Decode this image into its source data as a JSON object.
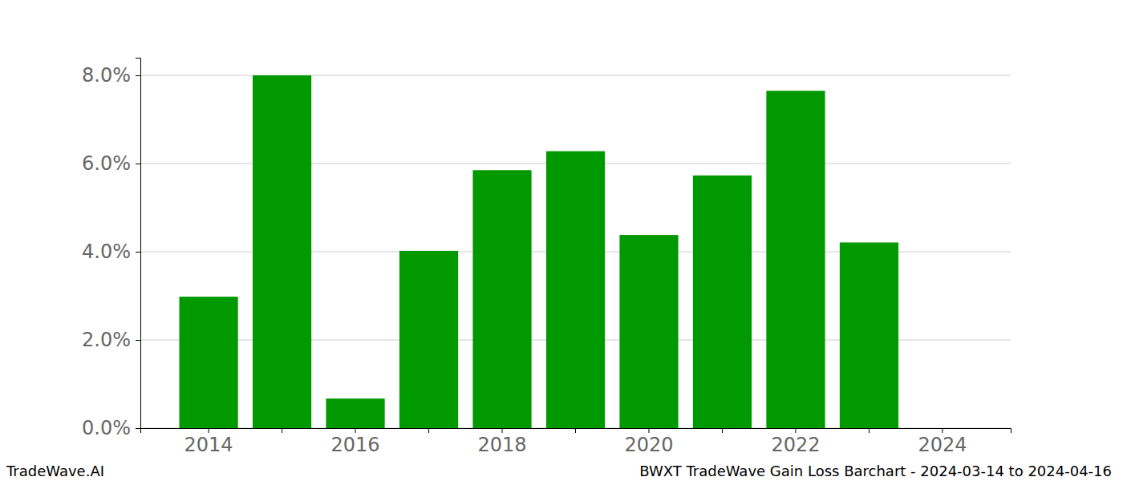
{
  "chart_data": {
    "type": "bar",
    "categories": [
      "2014",
      null,
      "2016",
      null,
      "2018",
      null,
      "2020",
      null,
      "2022",
      null,
      "2024"
    ],
    "values": [
      2.98,
      8.0,
      0.67,
      4.02,
      5.85,
      6.28,
      4.38,
      5.73,
      7.65,
      4.21,
      null
    ],
    "color": "#009900",
    "ylim": [
      0,
      8.4
    ],
    "yticks": [
      {
        "value": 0,
        "label": "0.0%"
      },
      {
        "value": 2,
        "label": "2.0%"
      },
      {
        "value": 4,
        "label": "4.0%"
      },
      {
        "value": 6,
        "label": "6.0%"
      },
      {
        "value": 8,
        "label": "8.0%"
      }
    ],
    "grid": true,
    "annotations": [
      "TradeWave.AI",
      "BWXT TradeWave Gain Loss Barchart - 2024-03-14 to 2024-04-16"
    ]
  }
}
